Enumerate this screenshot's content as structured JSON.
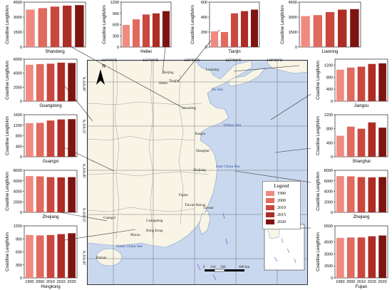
{
  "legend": {
    "title": "Legend",
    "items": [
      "1990",
      "2000",
      "2010",
      "2015",
      "2020"
    ]
  },
  "colors": {
    "bars": [
      "#f08a80",
      "#e06a5e",
      "#c9473d",
      "#ad2d25",
      "#7e1411"
    ],
    "land": "#f8f4e6",
    "sea": "#c9d8ef",
    "map_border": "#333333"
  },
  "map": {
    "compass": "N",
    "scale_labels": [
      "0",
      "150",
      "300",
      "600 km"
    ],
    "lon_labels": [
      "110°0'0\"E",
      "115°0'0\"E",
      "120°0'0\"E",
      "125°0'0\"E",
      "130°0'0\"E"
    ],
    "lat_labels": [
      "40°0'0\"N",
      "35°0'0\"N",
      "30°0'0\"N",
      "25°0'0\"N",
      "20°0'0\"N"
    ],
    "province_labels": [
      "Beijing",
      "Tianjin",
      "Hebei",
      "Liaoning",
      "Shandong",
      "Jiangsu",
      "Shanghai",
      "Zhejiang",
      "Fujian",
      "Taiwan Haixia",
      "Taiwan",
      "Guangdong",
      "Guangxi",
      "Macao",
      "Hong Kong",
      "Hainan"
    ],
    "sea_labels": [
      "Bo Hai",
      "Yellow Sea",
      "East China Sea",
      "South China Sea"
    ]
  },
  "chart_data": [
    {
      "type": "bar",
      "title": "Shandong",
      "ylabel": "Coastline Length/km",
      "categories": [
        "1990",
        "2000",
        "2010",
        "2015",
        "2020"
      ],
      "values": [
        3750,
        3900,
        4050,
        4150,
        4200
      ],
      "ylim": [
        0,
        4500
      ],
      "yticks": [
        0,
        1500,
        3000,
        4500
      ]
    },
    {
      "type": "bar",
      "title": "Hebei",
      "ylabel": "Coastline Length/km",
      "categories": [
        "1990",
        "2000",
        "2010",
        "2015",
        "2020"
      ],
      "values": [
        590,
        740,
        870,
        900,
        960
      ],
      "ylim": [
        0,
        1200
      ],
      "yticks": [
        0,
        300,
        600,
        900,
        1200
      ]
    },
    {
      "type": "bar",
      "title": "Tianjin",
      "ylabel": "Coastline Length/km",
      "categories": [
        "1990",
        "2000",
        "2010",
        "2015",
        "2020"
      ],
      "values": [
        210,
        200,
        450,
        480,
        500
      ],
      "ylim": [
        0,
        600
      ],
      "yticks": [
        0,
        200,
        400,
        600
      ]
    },
    {
      "type": "bar",
      "title": "Liaoning",
      "ylabel": "Coastline Length/km",
      "categories": [
        "1990",
        "2000",
        "2010",
        "2015",
        "2020"
      ],
      "values": [
        3100,
        3200,
        3500,
        3750,
        3800
      ],
      "ylim": [
        0,
        4500
      ],
      "yticks": [
        0,
        1500,
        3000,
        4500
      ]
    },
    {
      "type": "bar",
      "title": "Guangdong",
      "ylabel": "Coastline Length/km",
      "categories": [
        "1990",
        "2000",
        "2010",
        "2015",
        "2020"
      ],
      "values": [
        5200,
        5300,
        5350,
        5500,
        5450
      ],
      "ylim": [
        0,
        6000
      ],
      "yticks": [
        0,
        2000,
        4000,
        6000
      ]
    },
    {
      "type": "bar",
      "title": "Jiangsu",
      "ylabel": "Coastline Length/km",
      "categories": [
        "1990",
        "2000",
        "2010",
        "2015",
        "2020"
      ],
      "values": [
        1050,
        1120,
        1150,
        1240,
        1260
      ],
      "ylim": [
        0,
        1400
      ],
      "yticks": [
        0,
        400,
        800,
        1200
      ]
    },
    {
      "type": "bar",
      "title": "Guangxi",
      "ylabel": "Coastline Length/km",
      "categories": [
        "1990",
        "2000",
        "2010",
        "2015",
        "2020"
      ],
      "values": [
        1280,
        1290,
        1380,
        1420,
        1430
      ],
      "ylim": [
        0,
        1600
      ],
      "yticks": [
        0,
        400,
        800,
        1200,
        1600
      ]
    },
    {
      "type": "bar",
      "title": "Shanghai",
      "ylabel": "Coastline Length/km",
      "categories": [
        "1990",
        "2000",
        "2010",
        "2015",
        "2020"
      ],
      "values": [
        600,
        860,
        800,
        980,
        830
      ],
      "ylim": [
        0,
        1200
      ],
      "yticks": [
        0,
        400,
        800,
        1200
      ]
    },
    {
      "type": "bar",
      "title": "Zhejiang",
      "ylabel": "Coastline Length/km",
      "categories": [
        "1990",
        "2000",
        "2010",
        "2015",
        "2020"
      ],
      "values": [
        6900,
        6850,
        6700,
        6650,
        6700
      ],
      "ylim": [
        0,
        8000
      ],
      "yticks": [
        0,
        2000,
        4000,
        6000,
        8000
      ]
    },
    {
      "type": "bar",
      "title": "Zhejiang",
      "ylabel": "Coastline Length/km",
      "categories": [
        "1990",
        "2000",
        "2010",
        "2015",
        "2020"
      ],
      "values": [
        6900,
        6850,
        6700,
        6650,
        6700
      ],
      "ylim": [
        0,
        8000
      ],
      "yticks": [
        0,
        2000,
        4000,
        6000,
        8000
      ]
    },
    {
      "type": "bar",
      "title": "Hongkong",
      "ylabel": "Coastline Length/km",
      "categories": [
        "1990",
        "2000",
        "2010",
        "2015",
        "2020"
      ],
      "values": [
        990,
        980,
        990,
        1010,
        1030
      ],
      "ylim": [
        0,
        1200
      ],
      "yticks": [
        0,
        300,
        600,
        900,
        1200
      ]
    },
    {
      "type": "bar",
      "title": "Fujian",
      "ylabel": "Coastline Length/km",
      "categories": [
        "1990",
        "2000",
        "2010",
        "2015",
        "2020"
      ],
      "values": [
        5000,
        5050,
        5050,
        5200,
        5300
      ],
      "ylim": [
        0,
        6500
      ],
      "yticks": [
        0,
        1500,
        3000,
        4500,
        6500
      ]
    }
  ]
}
